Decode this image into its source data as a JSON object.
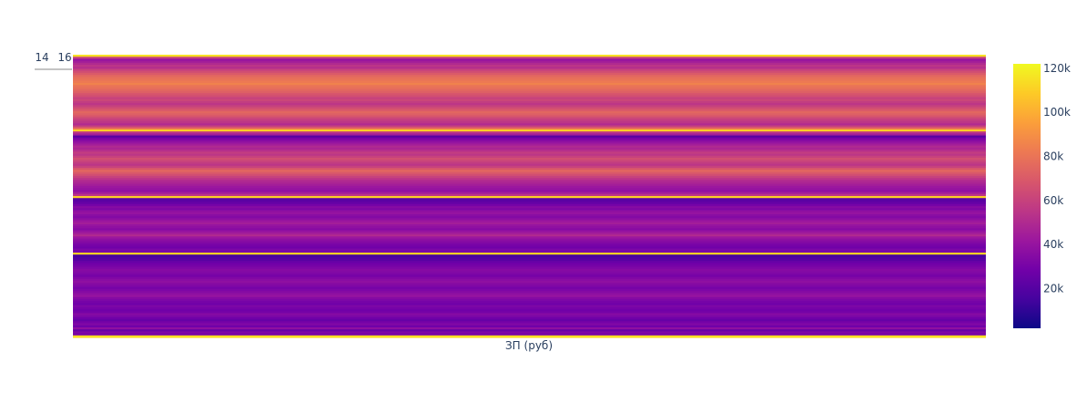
{
  "chart_data": {
    "type": "heatmap",
    "title": "",
    "xlabel": "ЗП (руб)",
    "ylabel": "",
    "y_tick_labels": [
      "14",
      "16"
    ],
    "colorscale": "plasma",
    "colorscale_stops": [
      "#0d0887",
      "#46039f",
      "#7201a8",
      "#9c179e",
      "#bd3786",
      "#d8576b",
      "#ed7953",
      "#fb9f3a",
      "#fdca26",
      "#f0f921"
    ],
    "zlim": [
      2000,
      122000
    ],
    "colorbar_ticks": [
      {
        "value": 20000,
        "label": "20k"
      },
      {
        "value": 40000,
        "label": "40k"
      },
      {
        "value": 60000,
        "label": "60k"
      },
      {
        "value": 80000,
        "label": "80k"
      },
      {
        "value": 100000,
        "label": "100k"
      },
      {
        "value": 120000,
        "label": "120k"
      }
    ],
    "rows": [
      115000,
      60000,
      40000,
      45000,
      50000,
      55000,
      52000,
      60000,
      65000,
      70000,
      75000,
      78000,
      80000,
      82000,
      85000,
      80000,
      78000,
      75000,
      72000,
      68000,
      65000,
      60000,
      62000,
      58000,
      55000,
      60000,
      65000,
      70000,
      75000,
      72000,
      68000,
      62000,
      58000,
      55000,
      50000,
      60000,
      78000,
      110000,
      55000,
      45000,
      20000,
      30000,
      35000,
      40000,
      45000,
      50000,
      48000,
      52000,
      58000,
      55000,
      60000,
      65000,
      62000,
      58000,
      55000,
      60000,
      68000,
      75000,
      70000,
      65000,
      60000,
      55000,
      50000,
      48000,
      45000,
      42000,
      40000,
      38000,
      45000,
      55000,
      110000,
      20000,
      22000,
      25000,
      30000,
      35000,
      32000,
      38000,
      40000,
      36000,
      34000,
      38000,
      42000,
      45000,
      40000,
      38000,
      35000,
      40000,
      45000,
      50000,
      42000,
      38000,
      35000,
      32000,
      30000,
      28000,
      32000,
      30000,
      110000,
      15000,
      18000,
      20000,
      25000,
      28000,
      30000,
      32000,
      35000,
      34000,
      32000,
      30000,
      33000,
      36000,
      38000,
      35000,
      33000,
      30000,
      32000,
      35000,
      38000,
      40000,
      35000,
      32000,
      30000,
      28000,
      32000,
      30000,
      28000,
      30000,
      35000,
      32000,
      28000,
      25000,
      30000,
      33000,
      28000,
      38000,
      25000,
      32000,
      30000,
      115000
    ]
  }
}
